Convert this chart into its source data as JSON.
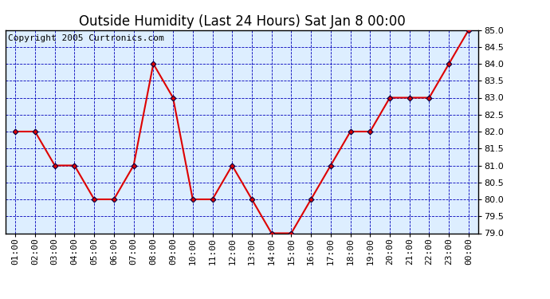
{
  "title": "Outside Humidity (Last 24 Hours) Sat Jan 8 00:00",
  "copyright_text": "Copyright 2005 Curtronics.com",
  "x_labels": [
    "01:00",
    "02:00",
    "03:00",
    "04:00",
    "05:00",
    "06:00",
    "07:00",
    "08:00",
    "09:00",
    "10:00",
    "11:00",
    "12:00",
    "13:00",
    "14:00",
    "15:00",
    "16:00",
    "17:00",
    "18:00",
    "19:00",
    "20:00",
    "21:00",
    "22:00",
    "23:00",
    "00:00"
  ],
  "y_values": [
    82.0,
    82.0,
    81.0,
    81.0,
    80.0,
    80.0,
    81.0,
    84.0,
    83.0,
    80.0,
    80.0,
    81.0,
    80.0,
    79.0,
    79.0,
    80.0,
    81.0,
    82.0,
    82.0,
    83.0,
    83.0,
    83.0,
    84.0,
    85.0
  ],
  "line_color": "#dd0000",
  "marker_color": "#000044",
  "plot_bg_color": "#ddeeff",
  "fig_bg_color": "#ffffff",
  "grid_color": "#0000bb",
  "border_color": "#000000",
  "ylim": [
    79.0,
    85.0
  ],
  "ytick_interval": 0.5,
  "title_fontsize": 12,
  "copyright_fontsize": 8,
  "tick_fontsize": 8
}
